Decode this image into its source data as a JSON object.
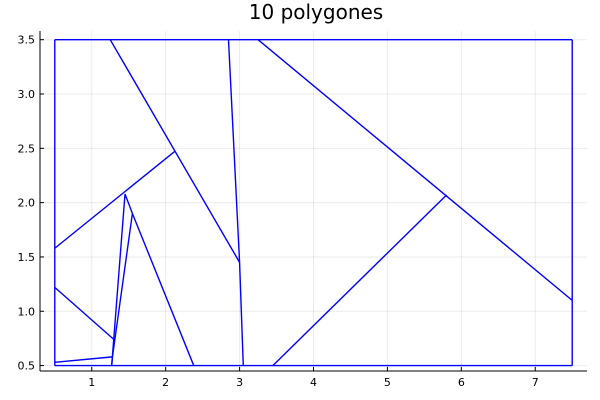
{
  "chart_data": {
    "type": "line",
    "title": "10 polygones",
    "xlabel": "",
    "ylabel": "",
    "xlim": [
      0.3,
      7.7
    ],
    "ylim": [
      0.45,
      3.58
    ],
    "grid": true,
    "legend": "none",
    "x_ticks": [
      1,
      2,
      3,
      4,
      5,
      6,
      7
    ],
    "x_tick_labels": [
      "1",
      "2",
      "3",
      "4",
      "5",
      "6",
      "7"
    ],
    "y_ticks": [
      0.5,
      1.0,
      1.5,
      2.0,
      2.5,
      3.0,
      3.5
    ],
    "y_tick_labels": [
      "0.5",
      "1.0",
      "1.5",
      "2.0",
      "2.5",
      "3.0",
      "3.5"
    ],
    "line_color": "#0000ff",
    "segments": [
      {
        "name": "bbox-top",
        "x": [
          0.5,
          7.5
        ],
        "y": [
          3.5,
          3.5
        ]
      },
      {
        "name": "bbox-bottom",
        "x": [
          0.5,
          7.5
        ],
        "y": [
          0.5,
          0.5
        ]
      },
      {
        "name": "bbox-left",
        "x": [
          0.5,
          0.5
        ],
        "y": [
          0.5,
          3.5
        ]
      },
      {
        "name": "bbox-right",
        "x": [
          7.5,
          7.5
        ],
        "y": [
          0.5,
          3.5
        ]
      },
      {
        "name": "edge-1",
        "x": [
          1.25,
          3.0
        ],
        "y": [
          3.5,
          1.45
        ]
      },
      {
        "name": "edge-2",
        "x": [
          3.0,
          3.05
        ],
        "y": [
          1.45,
          0.5
        ]
      },
      {
        "name": "edge-3",
        "x": [
          2.85,
          3.0
        ],
        "y": [
          3.5,
          1.45
        ]
      },
      {
        "name": "edge-4",
        "x": [
          3.25,
          7.5
        ],
        "y": [
          3.5,
          1.1
        ]
      },
      {
        "name": "edge-5",
        "x": [
          3.45,
          5.8
        ],
        "y": [
          0.5,
          2.07
        ]
      },
      {
        "name": "edge-6",
        "x": [
          0.5,
          2.12
        ],
        "y": [
          1.58,
          2.47
        ]
      },
      {
        "name": "edge-7",
        "x": [
          1.45,
          1.55
        ],
        "y": [
          2.08,
          1.9
        ]
      },
      {
        "name": "edge-8",
        "x": [
          1.55,
          2.38
        ],
        "y": [
          1.9,
          0.5
        ]
      },
      {
        "name": "edge-9",
        "x": [
          1.45,
          1.27
        ],
        "y": [
          2.08,
          0.5
        ]
      },
      {
        "name": "edge-10",
        "x": [
          1.55,
          1.28
        ],
        "y": [
          1.9,
          0.58
        ]
      },
      {
        "name": "edge-11",
        "x": [
          0.5,
          1.3
        ],
        "y": [
          1.22,
          0.74
        ]
      },
      {
        "name": "edge-12",
        "x": [
          0.5,
          1.28
        ],
        "y": [
          0.53,
          0.58
        ]
      },
      {
        "name": "edge-13",
        "x": [
          1.28,
          1.27
        ],
        "y": [
          0.58,
          0.5
        ]
      }
    ]
  }
}
